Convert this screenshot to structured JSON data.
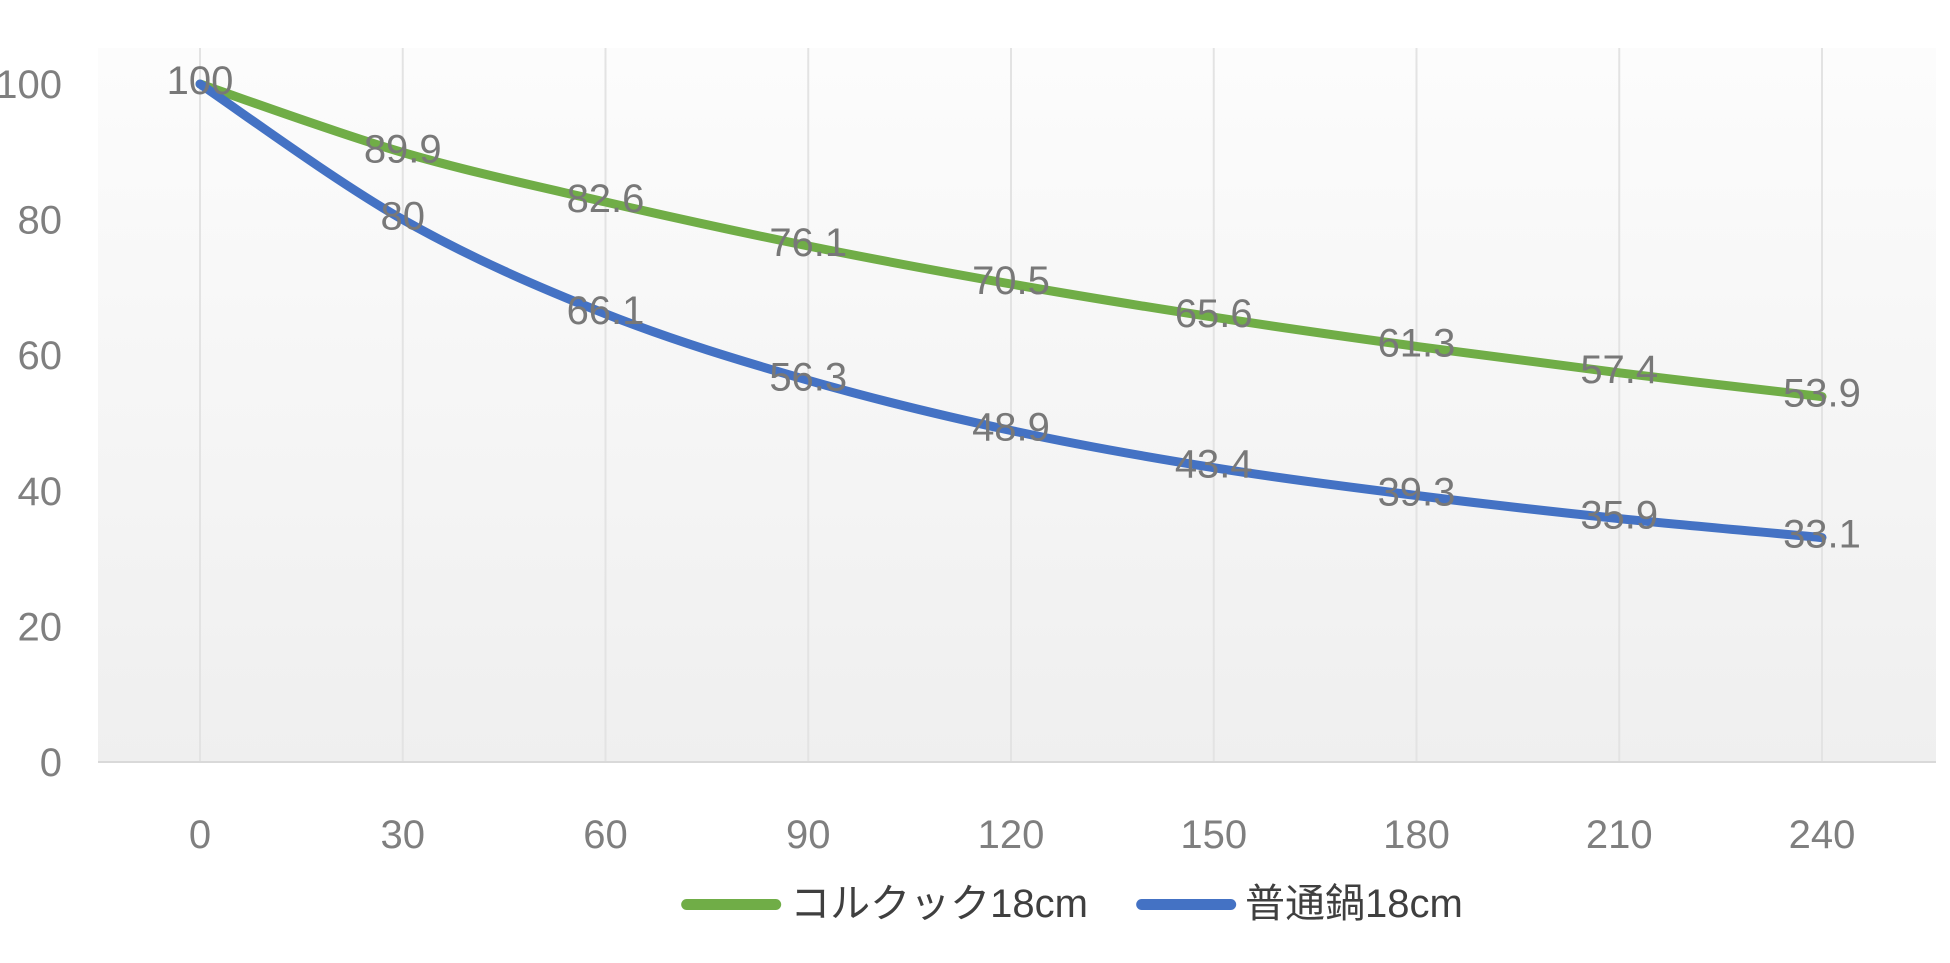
{
  "chart_data": {
    "type": "line",
    "x": [
      0,
      30,
      60,
      90,
      120,
      150,
      180,
      210,
      240
    ],
    "xticks": [
      0,
      30,
      60,
      90,
      120,
      150,
      180,
      210,
      240
    ],
    "yticks": [
      0,
      20,
      40,
      60,
      80,
      100
    ],
    "xlim": [
      0,
      240
    ],
    "ylim": [
      0,
      100
    ],
    "series": [
      {
        "name": "コルクック18cm",
        "slug": "corkcook-18cm",
        "color": "#70AD47",
        "values": [
          100,
          89.9,
          82.6,
          76.1,
          70.5,
          65.6,
          61.3,
          57.4,
          53.9
        ]
      },
      {
        "name": "普通鍋18cm",
        "slug": "regular-pot-18cm",
        "color": "#4472C4",
        "values": [
          100,
          80,
          66.1,
          56.3,
          48.9,
          43.4,
          39.3,
          35.9,
          33.1
        ]
      }
    ],
    "title": "",
    "xlabel": "",
    "ylabel": "",
    "grid": "vertical-only",
    "legend_position": "bottom-center",
    "data_labels": "center",
    "line_smoothing": true
  },
  "style": {
    "tick_color": "#7f7f7f",
    "data_label_color": "#787878",
    "legend_text_color": "#3f3f3f",
    "gridline_color": "#e3e3e3",
    "axis_line_color": "#d9d9d9",
    "plot_bg_top": "#fcfcfc",
    "plot_bg_bottom": "#efefef",
    "line_width": 9
  }
}
